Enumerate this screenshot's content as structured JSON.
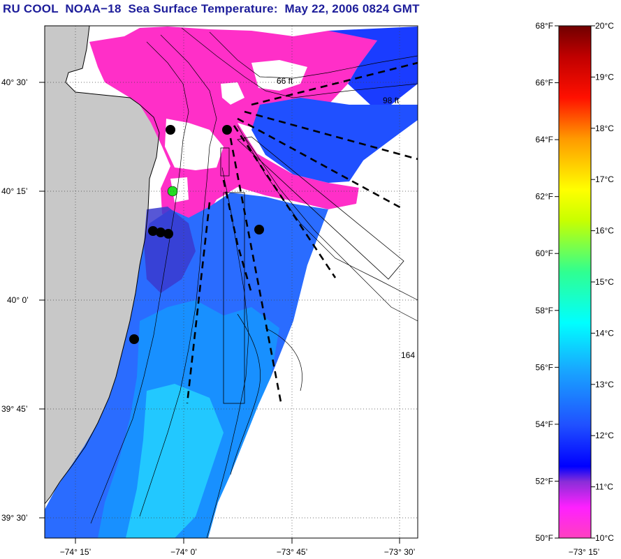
{
  "title": "RU COOL  NOAA−18  Sea Surface Temperature:  May 22, 2006 0824 GMT",
  "map": {
    "lat_labels": [
      "40° 30’",
      "40° 15’",
      "40° 0’",
      "39° 45’",
      "39° 30’"
    ],
    "lon_labels": [
      "−74° 15’",
      "−74° 0’",
      "−73° 45’",
      "−73° 30’",
      "−73° 15’"
    ],
    "contour_labels": [
      "66 ft",
      "98 ft",
      "164"
    ],
    "colors": {
      "land": "#c8c8c8",
      "cloud": "#ffffff",
      "marker": "#000000",
      "marker_highlight": "#22dd22"
    }
  },
  "colorbar": {
    "f_labels": [
      "68°F",
      "66°F",
      "64°F",
      "62°F",
      "60°F",
      "58°F",
      "56°F",
      "54°F",
      "52°F",
      "50°F"
    ],
    "c_labels": [
      "20°C",
      "19°C",
      "18°C",
      "17°C",
      "16°C",
      "15°C",
      "14°C",
      "13°C",
      "12°C",
      "11°C",
      "10°C"
    ]
  }
}
